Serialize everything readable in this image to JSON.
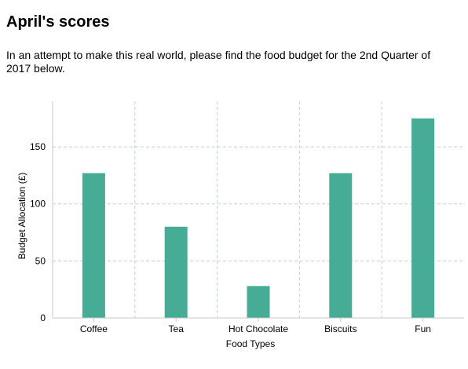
{
  "page": {
    "title": "April's scores",
    "intro": "In an attempt to make this real world, please find the food budget for the 2nd Quarter of 2017 below."
  },
  "colors": {
    "bar": "#46ac96",
    "grid": "#c8cce6",
    "axis": "#c8c8c8",
    "tick": "#000000"
  },
  "chart_data": {
    "type": "bar",
    "categories": [
      "Coffee",
      "Tea",
      "Hot Chocolate",
      "Biscuits",
      "Fun"
    ],
    "values": [
      127,
      80,
      28,
      127,
      175
    ],
    "xlabel": "Food Types",
    "ylabel": "Budget Allocation (£)",
    "ylim": [
      0,
      190
    ],
    "yticks": [
      0,
      50,
      100,
      150
    ],
    "grid": true,
    "grid_style": "dashed",
    "legend": false
  }
}
